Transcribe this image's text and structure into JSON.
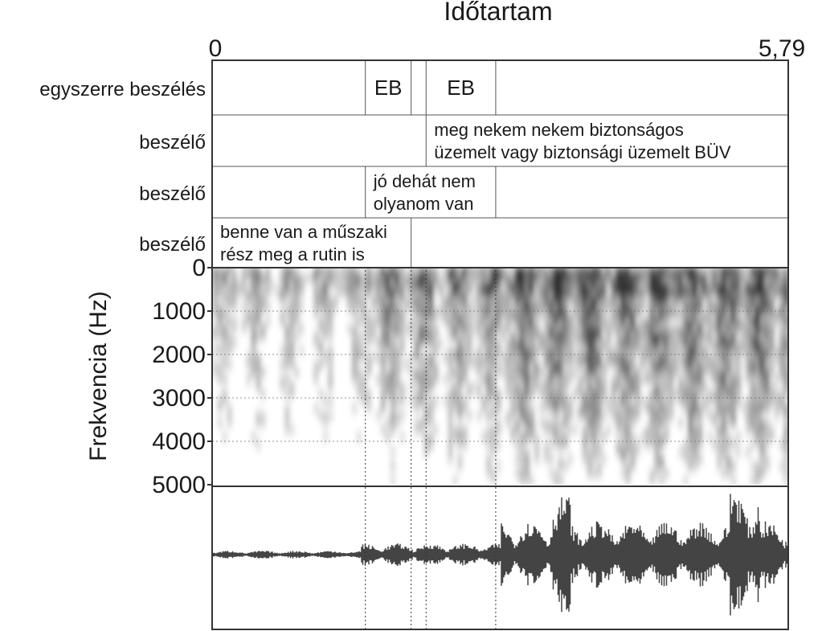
{
  "time_axis": {
    "label": "Időtartam",
    "start": "0",
    "end": "5,79",
    "duration": 5.79
  },
  "tiers": [
    {
      "name": "beszélő",
      "intervals": [
        {
          "t0": 0,
          "t1": 2.0,
          "text_lines": [
            "benne van a műszaki",
            "rész meg a rutin is"
          ]
        }
      ]
    },
    {
      "name": "beszélő",
      "intervals": [
        {
          "t0": 1.54,
          "t1": 2.85,
          "text_lines": [
            "jó dehát nem",
            "olyanom van"
          ]
        }
      ]
    },
    {
      "name": "beszélő",
      "intervals": [
        {
          "t0": 2.15,
          "t1": 5.79,
          "text_lines": [
            "meg nekem nekem biztonságos",
            "üzemelt vagy biztonsági üzemelt BÜV"
          ]
        }
      ]
    },
    {
      "name": "egyszerre beszélés",
      "intervals": [
        {
          "t0": 1.54,
          "t1": 2.0,
          "text_lines": [
            "EB"
          ]
        },
        {
          "t0": 2.15,
          "t1": 2.85,
          "text_lines": [
            "EB"
          ]
        }
      ]
    }
  ],
  "guide_times": [
    1.54,
    2.0,
    2.15,
    2.85
  ],
  "frequency_axis": {
    "label": "Frekvencia (Hz)",
    "ticks": [
      "0",
      "1000",
      "2000",
      "3000",
      "4000",
      "5000"
    ],
    "max": 5000
  }
}
